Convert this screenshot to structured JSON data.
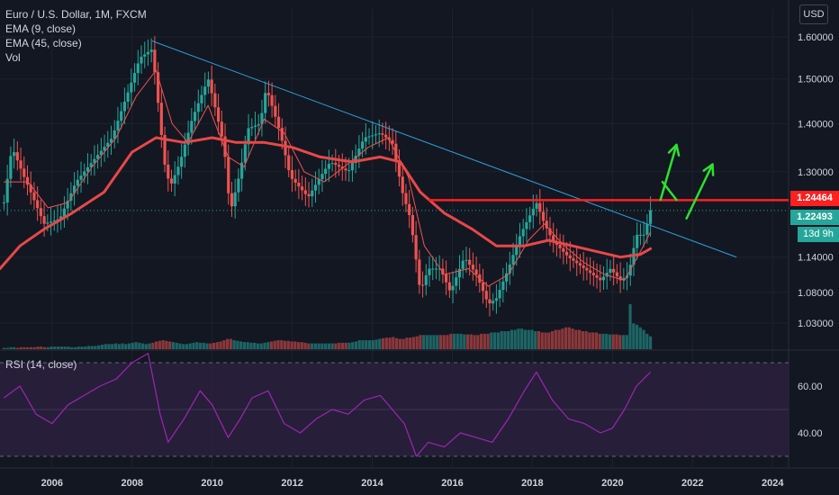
{
  "legend": {
    "symbol": "Euro / U.S. Dollar, 1M, FXCM",
    "ema9": "EMA (9, close)",
    "ema45": "EMA (45, close)",
    "vol": "Vol"
  },
  "rsi_legend": "RSI (14, close)",
  "currency_button": "USD",
  "price_tags": {
    "resistance": "1.24464",
    "last": "1.22493",
    "countdown": "13d 9h"
  },
  "colors": {
    "up": "#26a69a",
    "down": "#ef5350",
    "ema9": "#ef5350",
    "ema45": "#e84848",
    "trendline": "#2e9fd8",
    "resistance": "#ff2020",
    "arrows": "#2ee02e",
    "rsi": "#9c27b0",
    "rsi_band": "#2a1f3d"
  },
  "chart_data": [
    {
      "type": "candlestick",
      "title": "Euro / U.S. Dollar, 1M, FXCM",
      "y_ticks": [
        "1.60000",
        "1.50000",
        "1.40000",
        "1.30000",
        "1.14000",
        "1.08000",
        "1.03000"
      ],
      "x_ticks": [
        "2006",
        "2008",
        "2010",
        "2012",
        "2014",
        "2016",
        "2018",
        "2020",
        "2022",
        "2024"
      ],
      "x_range": [
        2004.7,
        2024.4
      ],
      "y_scale": "log",
      "price_path": [
        [
          2004.8,
          1.24
        ],
        [
          2005.0,
          1.35
        ],
        [
          2005.3,
          1.29
        ],
        [
          2005.8,
          1.2
        ],
        [
          2006.2,
          1.21
        ],
        [
          2006.6,
          1.28
        ],
        [
          2007.0,
          1.32
        ],
        [
          2007.5,
          1.37
        ],
        [
          2007.9,
          1.47
        ],
        [
          2008.2,
          1.55
        ],
        [
          2008.5,
          1.57
        ],
        [
          2008.8,
          1.32
        ],
        [
          2008.95,
          1.27
        ],
        [
          2009.2,
          1.32
        ],
        [
          2009.5,
          1.41
        ],
        [
          2009.9,
          1.5
        ],
        [
          2010.3,
          1.35
        ],
        [
          2010.45,
          1.22
        ],
        [
          2010.7,
          1.3
        ],
        [
          2010.9,
          1.39
        ],
        [
          2011.2,
          1.4
        ],
        [
          2011.35,
          1.48
        ],
        [
          2011.7,
          1.38
        ],
        [
          2011.95,
          1.29
        ],
        [
          2012.4,
          1.25
        ],
        [
          2012.7,
          1.29
        ],
        [
          2012.95,
          1.32
        ],
        [
          2013.4,
          1.3
        ],
        [
          2013.8,
          1.37
        ],
        [
          2014.2,
          1.38
        ],
        [
          2014.5,
          1.36
        ],
        [
          2014.75,
          1.26
        ],
        [
          2014.95,
          1.21
        ],
        [
          2015.2,
          1.08
        ],
        [
          2015.4,
          1.12
        ],
        [
          2015.7,
          1.12
        ],
        [
          2015.95,
          1.08
        ],
        [
          2016.3,
          1.14
        ],
        [
          2016.6,
          1.11
        ],
        [
          2016.9,
          1.06
        ],
        [
          2017.1,
          1.07
        ],
        [
          2017.4,
          1.12
        ],
        [
          2017.7,
          1.18
        ],
        [
          2018.1,
          1.24
        ],
        [
          2018.3,
          1.2
        ],
        [
          2018.5,
          1.17
        ],
        [
          2018.9,
          1.14
        ],
        [
          2019.3,
          1.12
        ],
        [
          2019.7,
          1.1
        ],
        [
          2019.95,
          1.12
        ],
        [
          2020.2,
          1.1
        ],
        [
          2020.4,
          1.11
        ],
        [
          2020.6,
          1.18
        ],
        [
          2020.8,
          1.18
        ],
        [
          2020.95,
          1.225
        ]
      ],
      "ema9_path": [
        [
          2004.8,
          1.28
        ],
        [
          2005.4,
          1.28
        ],
        [
          2005.9,
          1.23
        ],
        [
          2006.4,
          1.24
        ],
        [
          2007.0,
          1.31
        ],
        [
          2007.6,
          1.37
        ],
        [
          2008.1,
          1.46
        ],
        [
          2008.6,
          1.52
        ],
        [
          2009.0,
          1.4
        ],
        [
          2009.4,
          1.36
        ],
        [
          2009.9,
          1.44
        ],
        [
          2010.4,
          1.33
        ],
        [
          2010.8,
          1.31
        ],
        [
          2011.3,
          1.41
        ],
        [
          2011.8,
          1.38
        ],
        [
          2012.3,
          1.3
        ],
        [
          2012.8,
          1.28
        ],
        [
          2013.3,
          1.31
        ],
        [
          2013.9,
          1.35
        ],
        [
          2014.4,
          1.37
        ],
        [
          2014.9,
          1.29
        ],
        [
          2015.3,
          1.16
        ],
        [
          2015.8,
          1.11
        ],
        [
          2016.4,
          1.12
        ],
        [
          2016.9,
          1.09
        ],
        [
          2017.4,
          1.11
        ],
        [
          2017.9,
          1.17
        ],
        [
          2018.3,
          1.2
        ],
        [
          2018.8,
          1.16
        ],
        [
          2019.3,
          1.13
        ],
        [
          2019.8,
          1.11
        ],
        [
          2020.3,
          1.1
        ],
        [
          2020.7,
          1.15
        ],
        [
          2020.95,
          1.185
        ]
      ],
      "ema45_path": [
        [
          2004.7,
          1.12
        ],
        [
          2005.2,
          1.16
        ],
        [
          2005.8,
          1.19
        ],
        [
          2006.5,
          1.22
        ],
        [
          2007.3,
          1.26
        ],
        [
          2008.0,
          1.34
        ],
        [
          2008.6,
          1.37
        ],
        [
          2009.3,
          1.36
        ],
        [
          2010.0,
          1.37
        ],
        [
          2010.6,
          1.36
        ],
        [
          2011.3,
          1.36
        ],
        [
          2012.0,
          1.35
        ],
        [
          2012.7,
          1.33
        ],
        [
          2013.5,
          1.32
        ],
        [
          2014.2,
          1.33
        ],
        [
          2014.7,
          1.32
        ],
        [
          2015.2,
          1.26
        ],
        [
          2015.8,
          1.22
        ],
        [
          2016.5,
          1.19
        ],
        [
          2017.1,
          1.16
        ],
        [
          2017.8,
          1.16
        ],
        [
          2018.4,
          1.17
        ],
        [
          2019.0,
          1.16
        ],
        [
          2019.6,
          1.15
        ],
        [
          2020.2,
          1.14
        ],
        [
          2020.7,
          1.145
        ],
        [
          2020.95,
          1.155
        ]
      ],
      "trendline": [
        [
          2008.5,
          1.59
        ],
        [
          2023.1,
          1.14
        ]
      ],
      "resistance": {
        "value": 1.24464,
        "x_start": 2015.4
      },
      "last_price": 1.22493,
      "arrows": [
        {
          "from": [
            2021.2,
            1.245
          ],
          "to": [
            2021.6,
            1.355
          ]
        },
        {
          "from": [
            2021.6,
            1.245
          ],
          "to": [
            2021.25,
            1.28
          ]
        },
        {
          "from": [
            2021.85,
            1.21
          ],
          "to": [
            2022.5,
            1.315
          ]
        }
      ]
    },
    {
      "type": "line",
      "title": "RSI (14, close)",
      "y_ticks": [
        "60.00",
        "40.00"
      ],
      "band": [
        30,
        70
      ],
      "ylim": [
        25,
        75
      ],
      "x": [
        2004.8,
        2005.2,
        2005.6,
        2006.0,
        2006.4,
        2006.8,
        2007.2,
        2007.6,
        2008.0,
        2008.4,
        2008.7,
        2008.9,
        2009.3,
        2009.7,
        2010.0,
        2010.4,
        2010.7,
        2011.0,
        2011.4,
        2011.8,
        2012.2,
        2012.6,
        2013.0,
        2013.4,
        2013.8,
        2014.2,
        2014.5,
        2014.8,
        2015.1,
        2015.4,
        2015.8,
        2016.2,
        2016.6,
        2017.0,
        2017.4,
        2017.8,
        2018.1,
        2018.5,
        2018.9,
        2019.3,
        2019.7,
        2020.0,
        2020.3,
        2020.6,
        2020.95
      ],
      "values": [
        55,
        60,
        48,
        44,
        52,
        56,
        60,
        63,
        70,
        74,
        48,
        36,
        46,
        58,
        52,
        38,
        46,
        55,
        58,
        44,
        40,
        46,
        50,
        48,
        54,
        56,
        50,
        44,
        30,
        36,
        34,
        40,
        38,
        36,
        46,
        58,
        66,
        54,
        46,
        44,
        40,
        42,
        50,
        60,
        66
      ]
    }
  ],
  "volume": [
    2,
    2,
    3,
    3,
    2,
    3,
    3,
    3,
    3,
    3,
    4,
    4,
    3,
    3,
    4,
    4,
    4,
    4,
    4,
    4,
    3,
    3,
    4,
    4,
    4,
    5,
    5,
    5,
    6,
    7,
    8,
    8,
    8,
    9,
    8,
    9,
    8,
    9,
    10,
    11,
    10,
    9,
    8,
    9,
    10,
    12,
    13,
    14,
    13,
    12,
    11,
    10,
    9,
    8,
    8,
    9,
    10,
    11,
    10,
    10,
    9,
    9,
    10,
    11,
    12,
    14,
    16,
    16,
    14,
    13,
    12,
    11,
    11,
    10,
    10,
    9,
    9,
    10,
    11,
    12,
    13,
    14,
    14,
    13,
    13,
    12,
    12,
    11,
    11,
    10,
    9,
    9,
    9,
    9,
    9,
    9,
    9,
    9,
    9,
    10,
    10,
    10,
    10,
    11,
    12,
    14,
    14,
    14,
    14,
    14,
    15,
    16,
    17,
    18,
    18,
    19,
    17,
    16,
    16,
    18,
    18,
    19,
    20,
    22,
    22,
    22,
    22,
    22,
    22,
    22,
    22,
    22,
    24,
    24,
    24,
    24,
    23,
    23,
    23,
    22,
    22,
    24,
    24,
    24,
    26,
    26,
    26,
    28,
    28,
    28,
    30,
    30,
    32,
    32,
    30,
    30,
    30,
    28,
    28,
    26,
    26,
    26,
    28,
    30,
    30,
    32,
    34,
    34,
    32,
    30,
    30,
    28,
    28,
    26,
    26,
    26,
    24,
    24,
    24,
    23,
    23,
    23,
    22,
    22,
    22,
    70,
    40,
    38,
    34,
    30,
    24,
    20
  ]
}
